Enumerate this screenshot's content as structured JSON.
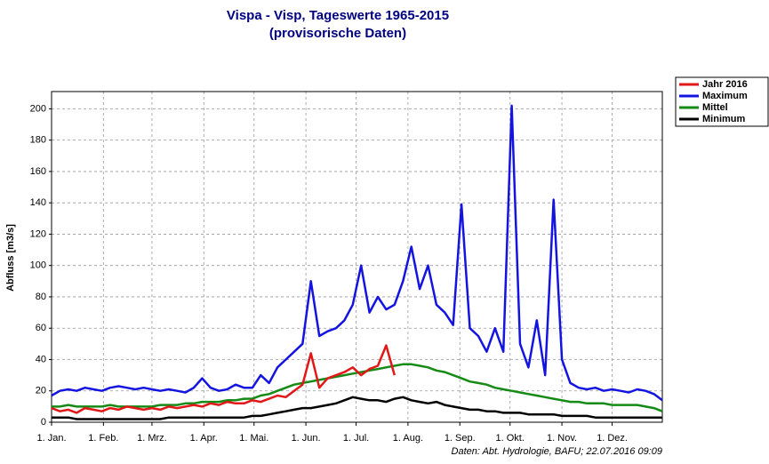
{
  "chart_data": {
    "type": "line",
    "title": "Vispa - Visp, Tageswerte 1965-2015",
    "subtitle": "(provisorische Daten)",
    "ylabel": "Abfluss [m3/s]",
    "source": "Daten: Abt. Hydrologie, BAFU; 22.07.2016 09:09",
    "xlim": [
      1,
      366
    ],
    "ylim": [
      0,
      211
    ],
    "xticks": [
      {
        "value": 1,
        "label": "1. Jan."
      },
      {
        "value": 32,
        "label": "1. Feb."
      },
      {
        "value": 61,
        "label": "1. Mrz."
      },
      {
        "value": 92,
        "label": "1. Apr."
      },
      {
        "value": 122,
        "label": "1. Mai."
      },
      {
        "value": 153,
        "label": "1. Jun."
      },
      {
        "value": 183,
        "label": "1. Jul."
      },
      {
        "value": 214,
        "label": "1. Aug."
      },
      {
        "value": 245,
        "label": "1. Sep."
      },
      {
        "value": 275,
        "label": "1. Okt."
      },
      {
        "value": 306,
        "label": "1. Nov."
      },
      {
        "value": 336,
        "label": "1. Dez."
      }
    ],
    "yticks": [
      0,
      20,
      40,
      60,
      80,
      100,
      120,
      140,
      160,
      180,
      200
    ],
    "grid": true,
    "legend": "outside-right",
    "x": [
      1,
      6,
      11,
      16,
      21,
      26,
      31,
      36,
      41,
      46,
      51,
      56,
      61,
      66,
      71,
      76,
      81,
      86,
      91,
      96,
      101,
      106,
      111,
      116,
      121,
      126,
      131,
      136,
      141,
      146,
      151,
      156,
      161,
      166,
      171,
      176,
      181,
      186,
      191,
      196,
      201,
      206,
      211,
      216,
      221,
      226,
      231,
      236,
      241,
      246,
      251,
      256,
      261,
      266,
      271,
      276,
      281,
      286,
      291,
      296,
      301,
      306,
      311,
      316,
      321,
      326,
      331,
      336,
      341,
      346,
      351,
      356,
      361,
      366
    ],
    "series": [
      {
        "name": "Jahr 2016",
        "color": "#e01818",
        "values": [
          9,
          7,
          8,
          6,
          9,
          8,
          7,
          9,
          8,
          10,
          9,
          8,
          9,
          8,
          10,
          9,
          10,
          11,
          10,
          12,
          11,
          13,
          12,
          12,
          14,
          13,
          15,
          17,
          16,
          20,
          24,
          44,
          22,
          28,
          30,
          32,
          35,
          30,
          34,
          36,
          49,
          30,
          null,
          null,
          null,
          null,
          null,
          null,
          null,
          null,
          null,
          null,
          null,
          null,
          null,
          null,
          null,
          null,
          null,
          null,
          null,
          null,
          null,
          null,
          null,
          null,
          null,
          null,
          null,
          null,
          null,
          null,
          null,
          null
        ]
      },
      {
        "name": "Maximum",
        "color": "#1414e0",
        "values": [
          17,
          20,
          21,
          20,
          22,
          21,
          20,
          22,
          23,
          22,
          21,
          22,
          21,
          20,
          21,
          20,
          19,
          22,
          28,
          22,
          20,
          21,
          24,
          22,
          22,
          30,
          25,
          35,
          40,
          45,
          50,
          90,
          55,
          58,
          60,
          65,
          75,
          100,
          70,
          80,
          72,
          75,
          90,
          112,
          85,
          100,
          75,
          70,
          62,
          139,
          60,
          55,
          45,
          60,
          45,
          202,
          50,
          35,
          65,
          30,
          142,
          40,
          25,
          22,
          21,
          22,
          20,
          21,
          20,
          19,
          21,
          20,
          18,
          14
        ]
      },
      {
        "name": "Mittel",
        "color": "#158a15",
        "values": [
          10,
          10,
          11,
          10,
          10,
          10,
          10,
          11,
          10,
          10,
          10,
          10,
          10,
          11,
          11,
          11,
          12,
          12,
          13,
          13,
          13,
          14,
          14,
          15,
          15,
          17,
          18,
          20,
          22,
          24,
          25,
          26,
          27,
          28,
          29,
          30,
          31,
          32,
          33,
          34,
          35,
          36,
          37,
          37,
          36,
          35,
          33,
          32,
          30,
          28,
          26,
          25,
          24,
          22,
          21,
          20,
          19,
          18,
          17,
          16,
          15,
          14,
          13,
          13,
          12,
          12,
          12,
          11,
          11,
          11,
          11,
          10,
          9,
          7
        ]
      },
      {
        "name": "Minimum",
        "color": "#000000",
        "values": [
          3,
          3,
          3,
          2,
          2,
          2,
          2,
          2,
          2,
          2,
          2,
          2,
          2,
          2,
          3,
          3,
          3,
          3,
          3,
          3,
          3,
          3,
          3,
          3,
          4,
          4,
          5,
          6,
          7,
          8,
          9,
          9,
          10,
          11,
          12,
          14,
          16,
          15,
          14,
          14,
          13,
          15,
          16,
          14,
          13,
          12,
          13,
          11,
          10,
          9,
          8,
          8,
          7,
          7,
          6,
          6,
          6,
          5,
          5,
          5,
          5,
          4,
          4,
          4,
          4,
          3,
          3,
          3,
          3,
          3,
          3,
          3,
          3,
          3
        ]
      }
    ]
  }
}
